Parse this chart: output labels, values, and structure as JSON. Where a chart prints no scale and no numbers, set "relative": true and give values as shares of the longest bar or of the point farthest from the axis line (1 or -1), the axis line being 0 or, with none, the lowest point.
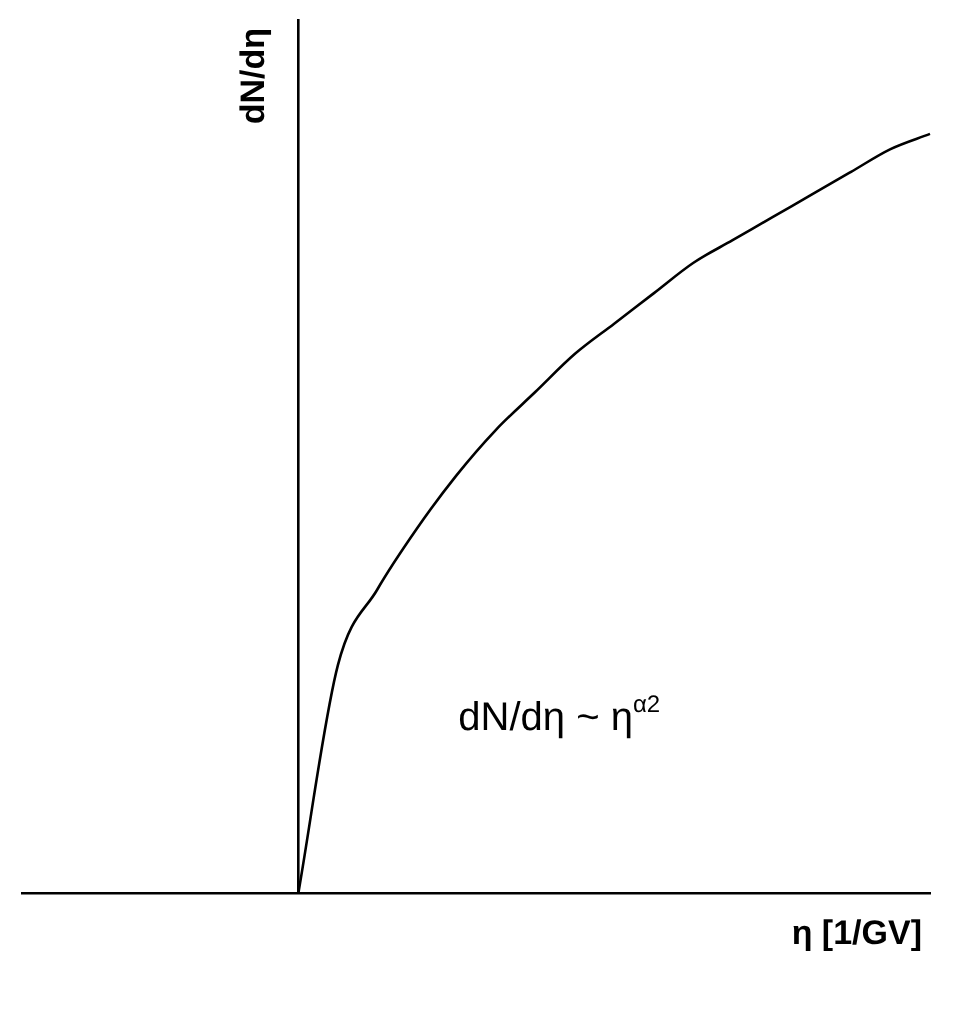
{
  "chart_data": {
    "type": "line",
    "relative": true,
    "xlabel": "η [1/GV]",
    "ylabel": "dN/dη",
    "annotations": [
      "dN/dη ~ η$^{α2}$"
    ],
    "categories": [
      null,
      null,
      null,
      null,
      null,
      null,
      null,
      null,
      null,
      null,
      null,
      null,
      null,
      null,
      null,
      null,
      null,
      null,
      null,
      null,
      null,
      null,
      null,
      null
    ],
    "series": [
      {
        "color": "#000000",
        "values": [
          null,
          null,
          null,
          null,
          null,
          null,
          null,
          0,
          0.3,
          0.4,
          0.48,
          0.55,
          0.61,
          0.66,
          0.71,
          0.75,
          0.79,
          0.83,
          0.86,
          0.89,
          0.92,
          0.95,
          0.98,
          1
        ]
      }
    ],
    "legend": false,
    "grid": false,
    "marker": "none",
    "line_style": "solid"
  }
}
